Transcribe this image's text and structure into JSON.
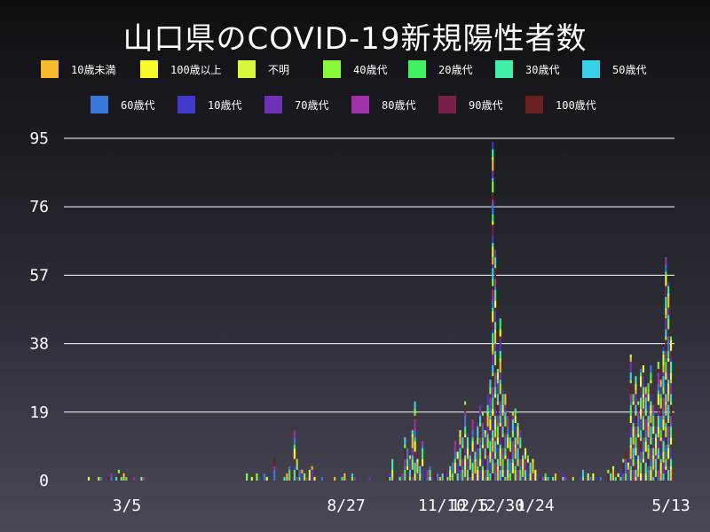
{
  "title": "山口県のCOVID-19新規陽性者数",
  "colors": {
    "grid": "#ffffff"
  },
  "chart_data": {
    "type": "bar",
    "stacked": true,
    "title": "山口県のCOVID-19新規陽性者数",
    "ylim": [
      0,
      95
    ],
    "y_ticks": [
      "0",
      "19",
      "38",
      "57",
      "76",
      "95"
    ],
    "x_ticks": [
      "3/5",
      "8/27",
      "11/10",
      "12/5",
      "12/30",
      "1/24",
      "5/13"
    ],
    "legend": [
      {
        "name": "10歳未満",
        "color": "#f8b82b"
      },
      {
        "name": "100歳以上",
        "color": "#f8f82b"
      },
      {
        "name": "不明",
        "color": "#d8f83b"
      },
      {
        "name": "40歳代",
        "color": "#88f83b"
      },
      {
        "name": "20歳代",
        "color": "#40f060"
      },
      {
        "name": "30歳代",
        "color": "#3ef0a8"
      },
      {
        "name": "50歳代",
        "color": "#38d0e8"
      },
      {
        "name": "60歳代",
        "color": "#3878d8"
      },
      {
        "name": "10歳代",
        "color": "#4038c8"
      },
      {
        "name": "70歳代",
        "color": "#7030b8"
      },
      {
        "name": "80歳代",
        "color": "#a030a8"
      },
      {
        "name": "90歳代",
        "color": "#782048"
      },
      {
        "name": "100歳代",
        "color": "#682020"
      }
    ],
    "daily_totals": [
      1,
      0,
      0,
      0,
      1,
      1,
      0,
      0,
      1,
      2,
      0,
      1,
      3,
      1,
      2,
      1,
      1,
      0,
      1,
      0,
      0,
      1,
      1,
      0,
      0,
      0,
      0,
      0,
      0,
      0,
      0,
      0,
      0,
      0,
      0,
      0,
      0,
      0,
      0,
      0,
      0,
      0,
      0,
      0,
      0,
      0,
      0,
      0,
      0,
      0,
      0,
      0,
      0,
      0,
      0,
      0,
      0,
      0,
      0,
      0,
      0,
      0,
      0,
      2,
      0,
      1,
      0,
      2,
      1,
      0,
      2,
      1,
      0,
      0,
      6,
      0,
      0,
      0,
      1,
      2,
      4,
      3,
      14,
      6,
      3,
      3,
      2,
      1,
      3,
      4,
      1,
      0,
      0,
      1,
      0,
      0,
      0,
      0,
      1,
      0,
      0,
      1,
      2,
      0,
      0,
      2,
      1,
      0,
      0,
      0,
      0,
      0,
      1,
      0,
      0,
      0,
      0,
      0,
      0,
      1,
      2,
      6,
      0,
      0,
      1,
      2,
      12,
      9,
      7,
      14,
      22,
      6,
      4,
      11,
      0,
      3,
      4,
      2,
      2,
      2,
      1,
      2,
      3,
      3,
      4,
      5,
      11,
      8,
      14,
      12,
      22,
      13,
      8,
      18,
      12,
      16,
      21,
      19,
      14,
      24,
      28,
      94,
      64,
      31,
      45,
      26,
      24,
      19,
      12,
      19,
      20,
      16,
      14,
      8,
      9,
      7,
      5,
      6,
      3,
      2,
      1,
      1,
      2,
      1,
      0,
      1,
      2,
      0,
      1,
      2,
      1,
      0,
      2,
      1,
      0,
      0,
      1,
      3,
      1,
      2,
      1,
      2,
      1,
      0,
      1,
      0,
      0,
      3,
      2,
      4,
      1,
      2,
      3,
      6,
      8,
      5,
      35,
      24,
      29,
      22,
      31,
      32,
      26,
      27,
      32,
      22,
      18,
      33,
      28,
      37,
      62,
      55,
      40
    ]
  }
}
